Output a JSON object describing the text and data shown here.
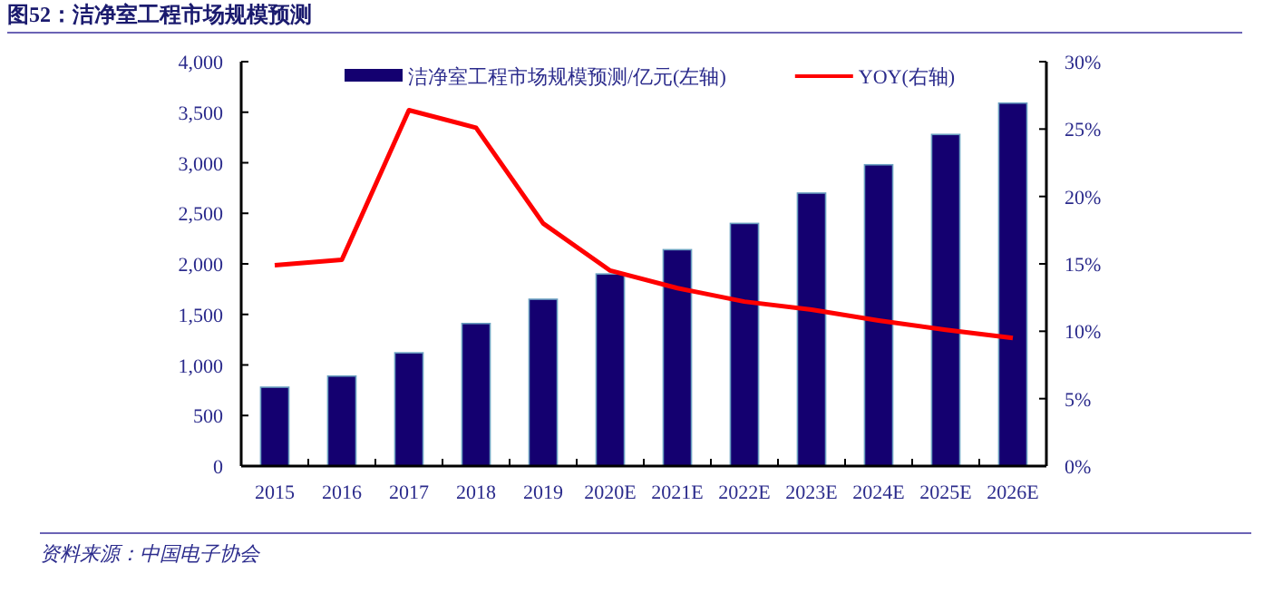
{
  "chart_data": {
    "type": "bar",
    "title": "图52：洁净室工程市场规模预测",
    "categories": [
      "2015",
      "2016",
      "2017",
      "2018",
      "2019",
      "2020E",
      "2021E",
      "2022E",
      "2023E",
      "2024E",
      "2025E",
      "2026E"
    ],
    "series": [
      {
        "name": "洁净室工程市场规模预测/亿元(左轴)",
        "color": "#140070",
        "values": [
          780,
          890,
          1120,
          1410,
          1650,
          1900,
          2140,
          2400,
          2700,
          2980,
          3280,
          3590
        ]
      },
      {
        "name": "YOY(右轴)",
        "type": "line",
        "axis": "y2",
        "color": "#ff0000",
        "values": [
          14.9,
          15.3,
          26.4,
          25.1,
          18.0,
          14.5,
          13.2,
          12.2,
          11.6,
          10.8,
          10.1,
          9.5
        ]
      }
    ],
    "ylim": [
      0,
      4000
    ],
    "yticks": [
      0,
      500,
      {
        "value": 1000,
        "label": "1,000"
      },
      {
        "value": 1500,
        "label": "1,500"
      },
      {
        "value": 2000,
        "label": "2,000"
      },
      {
        "value": 2500,
        "label": "2,500"
      },
      {
        "value": 3000,
        "label": "3,000"
      },
      {
        "value": 3500,
        "label": "3,500"
      },
      {
        "value": 4000,
        "label": "4,000"
      }
    ],
    "y2lim": [
      0,
      30
    ],
    "y2ticks": [
      {
        "value": 0,
        "label": "0%"
      },
      {
        "value": 5,
        "label": "5%"
      },
      {
        "value": 10,
        "label": "10%"
      },
      {
        "value": 15,
        "label": "15%"
      },
      {
        "value": 20,
        "label": "20%"
      },
      {
        "value": 25,
        "label": "25%"
      },
      {
        "value": 30,
        "label": "30%"
      }
    ],
    "legend": "top",
    "grid": false,
    "annotations": [
      "资料来源：中国电子协会"
    ]
  }
}
